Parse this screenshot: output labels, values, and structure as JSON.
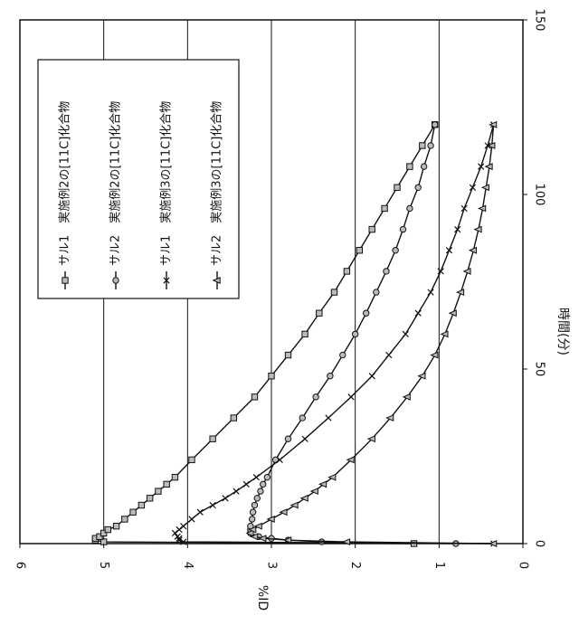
{
  "chart_data": {
    "type": "line",
    "title": "",
    "xlabel": "時間(分)",
    "ylabel": "%ID",
    "xlim": [
      0,
      150
    ],
    "ylim": [
      0,
      6
    ],
    "x_ticks": [
      "0",
      "50",
      "100",
      "150"
    ],
    "y_ticks": [
      "0",
      "1",
      "2",
      "3",
      "4",
      "5",
      "6"
    ],
    "grid": "horizontal",
    "legend_position": "top-right",
    "series": [
      {
        "name": "サル1　実施例2の[11C]化合物",
        "marker": "square",
        "x": [
          0,
          0.5,
          1,
          1.5,
          2,
          3,
          4,
          5,
          7,
          9,
          11,
          13,
          15,
          17,
          19,
          24,
          30,
          36,
          42,
          48,
          54,
          60,
          66,
          72,
          78,
          84,
          90,
          96,
          102,
          108,
          114,
          120
        ],
        "y": [
          1.3,
          5.0,
          5.1,
          5.1,
          5.05,
          5.0,
          4.95,
          4.85,
          4.75,
          4.65,
          4.55,
          4.45,
          4.35,
          4.25,
          4.15,
          3.95,
          3.7,
          3.45,
          3.2,
          3.0,
          2.8,
          2.6,
          2.43,
          2.25,
          2.1,
          1.95,
          1.8,
          1.65,
          1.5,
          1.35,
          1.2,
          1.05
        ]
      },
      {
        "name": "サル2　実施例2の[11C]化合物",
        "marker": "circle",
        "x": [
          0,
          0.5,
          1,
          1.5,
          2,
          3,
          4,
          5,
          7,
          9,
          11,
          13,
          15,
          17,
          19,
          24,
          30,
          36,
          42,
          48,
          54,
          60,
          66,
          72,
          78,
          84,
          90,
          96,
          102,
          108,
          114,
          120
        ],
        "y": [
          0.8,
          2.4,
          2.8,
          3.0,
          3.15,
          3.25,
          3.25,
          3.25,
          3.23,
          3.22,
          3.2,
          3.17,
          3.13,
          3.1,
          3.05,
          2.95,
          2.8,
          2.63,
          2.47,
          2.3,
          2.15,
          2.0,
          1.87,
          1.75,
          1.63,
          1.52,
          1.43,
          1.35,
          1.25,
          1.18,
          1.1,
          1.05
        ]
      },
      {
        "name": "サル1　実施例3の[11C]化合物",
        "marker": "x",
        "x": [
          0,
          0.5,
          1,
          1.5,
          2,
          3,
          4,
          5,
          7,
          9,
          11,
          13,
          15,
          17,
          19,
          24,
          30,
          36,
          42,
          48,
          54,
          60,
          66,
          72,
          78,
          84,
          90,
          96,
          102,
          108,
          114,
          120
        ],
        "y": [
          0.35,
          4.05,
          4.1,
          4.1,
          4.12,
          4.15,
          4.1,
          4.05,
          3.95,
          3.85,
          3.7,
          3.55,
          3.42,
          3.3,
          3.18,
          2.9,
          2.6,
          2.32,
          2.05,
          1.8,
          1.6,
          1.4,
          1.25,
          1.1,
          0.98,
          0.88,
          0.78,
          0.7,
          0.6,
          0.5,
          0.42,
          0.35
        ]
      },
      {
        "name": "サル2　実施例3の[11C]化合物",
        "marker": "triangle",
        "x": [
          0,
          0.5,
          1,
          1.5,
          2,
          3,
          4,
          5,
          7,
          9,
          11,
          13,
          15,
          17,
          19,
          24,
          30,
          36,
          42,
          48,
          54,
          60,
          66,
          72,
          78,
          84,
          90,
          96,
          102,
          108,
          114,
          120
        ],
        "y": [
          0.35,
          2.1,
          2.8,
          3.1,
          3.2,
          3.25,
          3.22,
          3.15,
          3.0,
          2.85,
          2.72,
          2.6,
          2.48,
          2.38,
          2.27,
          2.05,
          1.8,
          1.58,
          1.38,
          1.2,
          1.05,
          0.93,
          0.83,
          0.74,
          0.66,
          0.59,
          0.53,
          0.48,
          0.44,
          0.4,
          0.37,
          0.35
        ]
      }
    ]
  }
}
